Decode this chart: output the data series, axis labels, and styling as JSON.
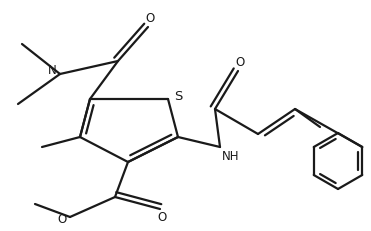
{
  "bg_color": "#ffffff",
  "line_color": "#1a1a1a",
  "line_width": 1.6,
  "font_size": 8.5,
  "figsize": [
    3.71,
    2.32
  ],
  "dpi": 100,
  "xlim": [
    0,
    371
  ],
  "ylim": [
    0,
    232
  ]
}
